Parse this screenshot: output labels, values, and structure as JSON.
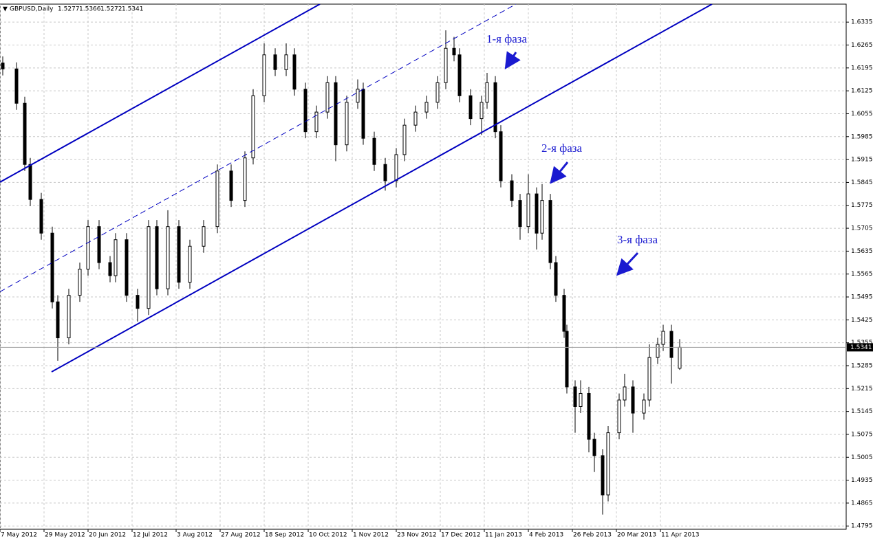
{
  "chart_data": {
    "type": "candlestick",
    "title": "GBPUSD,Daily",
    "annotations": [
      "1-я фаза",
      "2-я фаза",
      "3-я фаза"
    ],
    "x": [
      0,
      5,
      8,
      10,
      14,
      18,
      20,
      24,
      28,
      31,
      35,
      39,
      41,
      45,
      49,
      53,
      56,
      60,
      64,
      68,
      73,
      78,
      83,
      88,
      91,
      95,
      99,
      103,
      106,
      110,
      114,
      118,
      121,
      125,
      129,
      131,
      135,
      139,
      143,
      146,
      150,
      154,
      158,
      161,
      164,
      166,
      170,
      174,
      176,
      179,
      181,
      185,
      188,
      191,
      194,
      196,
      199,
      201,
      204,
      205,
      208,
      210,
      213,
      215,
      218,
      220,
      224,
      226,
      229,
      233,
      235,
      238,
      240,
      243,
      246
    ],
    "open": [
      1.621,
      1.6192,
      1.6087,
      1.59,
      1.5793,
      1.569,
      1.548,
      1.537,
      1.55,
      1.558,
      1.571,
      1.56,
      1.556,
      1.567,
      1.55,
      1.546,
      1.571,
      1.552,
      1.571,
      1.554,
      1.565,
      1.571,
      1.588,
      1.579,
      1.592,
      1.611,
      1.6235,
      1.619,
      1.6235,
      1.613,
      1.6,
      1.606,
      1.615,
      1.596,
      1.609,
      1.613,
      1.598,
      1.59,
      1.585,
      1.593,
      1.602,
      1.606,
      1.609,
      1.615,
      1.6255,
      1.6235,
      1.611,
      1.604,
      1.609,
      1.615,
      1.6,
      1.585,
      1.579,
      1.571,
      1.581,
      1.569,
      1.579,
      1.56,
      1.55,
      1.539,
      1.522,
      1.516,
      1.52,
      1.506,
      1.501,
      1.489,
      1.508,
      1.518,
      1.522,
      1.514,
      1.518,
      1.531,
      1.535,
      1.539,
      1.5277
    ],
    "high": [
      1.623,
      1.6212,
      1.6107,
      1.592,
      1.5813,
      1.571,
      1.55,
      1.552,
      1.56,
      1.573,
      1.573,
      1.562,
      1.569,
      1.569,
      1.552,
      1.573,
      1.573,
      1.576,
      1.573,
      1.567,
      1.573,
      1.59,
      1.59,
      1.594,
      1.613,
      1.627,
      1.6255,
      1.627,
      1.6255,
      1.615,
      1.608,
      1.617,
      1.617,
      1.611,
      1.616,
      1.615,
      1.6,
      1.592,
      1.595,
      1.604,
      1.608,
      1.611,
      1.617,
      1.631,
      1.629,
      1.6255,
      1.613,
      1.611,
      1.618,
      1.617,
      1.602,
      1.587,
      1.581,
      1.587,
      1.583,
      1.584,
      1.581,
      1.562,
      1.552,
      1.541,
      1.524,
      1.524,
      1.522,
      1.508,
      1.503,
      1.51,
      1.52,
      1.526,
      1.524,
      1.52,
      1.535,
      1.537,
      1.541,
      1.541,
      1.5366
    ],
    "low": [
      1.6172,
      1.6067,
      1.588,
      1.5773,
      1.567,
      1.546,
      1.53,
      1.535,
      1.548,
      1.556,
      1.558,
      1.554,
      1.554,
      1.548,
      1.542,
      1.544,
      1.55,
      1.55,
      1.552,
      1.552,
      1.563,
      1.569,
      1.577,
      1.577,
      1.59,
      1.609,
      1.617,
      1.617,
      1.611,
      1.598,
      1.598,
      1.604,
      1.591,
      1.594,
      1.607,
      1.596,
      1.588,
      1.582,
      1.583,
      1.591,
      1.6,
      1.604,
      1.607,
      1.613,
      1.6215,
      1.609,
      1.602,
      1.599,
      1.607,
      1.598,
      1.583,
      1.577,
      1.567,
      1.569,
      1.564,
      1.567,
      1.558,
      1.548,
      1.537,
      1.52,
      1.508,
      1.514,
      1.502,
      1.496,
      1.483,
      1.487,
      1.506,
      1.516,
      1.508,
      1.512,
      1.516,
      1.529,
      1.533,
      1.523,
      1.5272
    ],
    "close": [
      1.6192,
      1.6087,
      1.59,
      1.5793,
      1.569,
      1.548,
      1.537,
      1.55,
      1.558,
      1.571,
      1.56,
      1.556,
      1.567,
      1.55,
      1.546,
      1.571,
      1.552,
      1.571,
      1.554,
      1.565,
      1.571,
      1.588,
      1.579,
      1.592,
      1.611,
      1.6235,
      1.619,
      1.6235,
      1.613,
      1.6,
      1.606,
      1.615,
      1.596,
      1.609,
      1.613,
      1.598,
      1.59,
      1.585,
      1.593,
      1.602,
      1.606,
      1.609,
      1.615,
      1.6255,
      1.6235,
      1.611,
      1.604,
      1.609,
      1.615,
      1.6,
      1.585,
      1.579,
      1.571,
      1.581,
      1.569,
      1.579,
      1.56,
      1.55,
      1.539,
      1.522,
      1.516,
      1.52,
      1.506,
      1.501,
      1.489,
      1.508,
      1.518,
      1.522,
      1.514,
      1.518,
      1.531,
      1.535,
      1.539,
      1.531,
      1.5341
    ],
    "xlim": [
      -1,
      306.5
    ],
    "ylim": [
      1.4785,
      1.639
    ],
    "yticks": [
      1.6335,
      1.6265,
      1.6195,
      1.6125,
      1.6055,
      1.5985,
      1.5915,
      1.5845,
      1.5775,
      1.5705,
      1.5635,
      1.5565,
      1.5495,
      1.5425,
      1.5355,
      1.5285,
      1.5215,
      1.5145,
      1.5075,
      1.5005,
      1.4935,
      1.4865,
      1.4795
    ],
    "xticks": [
      {
        "value": -1,
        "label": "7 May 2012"
      },
      {
        "value": 15,
        "label": "29 May 2012"
      },
      {
        "value": 31,
        "label": "20 Jun 2012"
      },
      {
        "value": 47,
        "label": "12 Jul 2012"
      },
      {
        "value": 63,
        "label": "3 Aug 2012"
      },
      {
        "value": 79,
        "label": "27 Aug 2012"
      },
      {
        "value": 95,
        "label": "18 Sep 2012"
      },
      {
        "value": 111,
        "label": "10 Oct 2012"
      },
      {
        "value": 127,
        "label": "1 Nov 2012"
      },
      {
        "value": 143,
        "label": "23 Nov 2012"
      },
      {
        "value": 159,
        "label": "17 Dec 2012"
      },
      {
        "value": 175,
        "label": "11 Jan 2013"
      },
      {
        "value": 191,
        "label": "4 Feb 2013"
      },
      {
        "value": 207,
        "label": "26 Feb 2013"
      },
      {
        "value": 223,
        "label": "20 Mar 2013"
      },
      {
        "value": 239,
        "label": "11 Apr 2013"
      }
    ],
    "grid": true,
    "lines": [
      {
        "x": [
          -1,
          115.25
        ],
        "y": [
          1.5846,
          1.639
        ],
        "dashed": false,
        "color": "#0000c0"
      },
      {
        "x": [
          17.75,
          257.75
        ],
        "y": [
          1.5266,
          1.639
        ],
        "dashed": false,
        "color": "#0000c0"
      },
      {
        "x": [
          -1,
          186.5
        ],
        "y": [
          1.5511,
          1.639
        ],
        "dashed": true,
        "color": "#0000c0"
      }
    ]
  }
}
